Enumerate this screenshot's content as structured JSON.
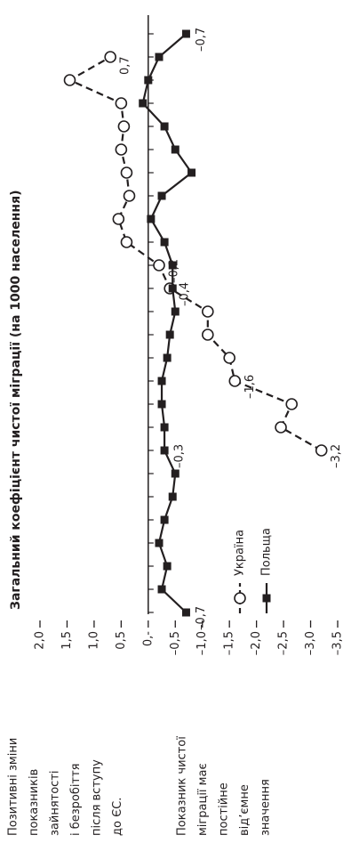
{
  "chart_data": {
    "type": "line",
    "title": "Загальний коефіцієнт чистої міграції (на 1000 населення)",
    "categories": [
      null,
      null,
      null,
      null,
      null,
      null,
      null,
      null,
      null,
      null,
      null,
      null,
      null,
      null,
      null,
      null,
      null,
      null,
      null,
      null,
      null,
      null,
      null,
      null,
      null,
      null
    ],
    "series": [
      {
        "name": "Україна",
        "color": "#231f20",
        "marker": "circle",
        "dashed": true,
        "values": [
          null,
          null,
          null,
          null,
          null,
          null,
          null,
          -3.2,
          -2.45,
          -2.65,
          -1.6,
          -1.5,
          -1.1,
          -1.1,
          -0.4,
          -0.2,
          0.4,
          0.55,
          0.35,
          0.4,
          0.5,
          0.45,
          0.5,
          1.45,
          0.7,
          null
        ],
        "value_labels": [
          null,
          null,
          null,
          null,
          null,
          null,
          null,
          "–3,2",
          null,
          null,
          "–1,6",
          null,
          null,
          null,
          "–0,4",
          "–0,2",
          null,
          null,
          null,
          null,
          null,
          null,
          null,
          null,
          "0,7",
          null
        ]
      },
      {
        "name": "Польща",
        "color": "#231f20",
        "marker": "square",
        "dashed": false,
        "values": [
          -0.7,
          -0.25,
          -0.35,
          -0.2,
          -0.3,
          -0.45,
          -0.5,
          -0.3,
          -0.3,
          -0.25,
          -0.25,
          -0.35,
          -0.4,
          -0.5,
          -0.45,
          -0.45,
          -0.3,
          -0.05,
          -0.25,
          -0.8,
          -0.5,
          -0.3,
          0.1,
          0.0,
          -0.2,
          -0.7
        ],
        "value_labels": [
          "–0,7",
          null,
          null,
          null,
          null,
          null,
          null,
          "–0,3",
          null,
          null,
          null,
          null,
          null,
          null,
          null,
          null,
          null,
          null,
          null,
          null,
          null,
          null,
          null,
          null,
          null,
          "–0,7"
        ]
      }
    ],
    "ylim": [
      -3.5,
      2.0
    ],
    "yticks": [
      {
        "value": 2.0,
        "label": "2,0"
      },
      {
        "value": 1.5,
        "label": "1,5"
      },
      {
        "value": 1.0,
        "label": "1,0"
      },
      {
        "value": 0.5,
        "label": "0,5"
      },
      {
        "value": 0,
        "label": "0,-"
      },
      {
        "value": -0.5,
        "label": "–0,5"
      },
      {
        "value": -1.0,
        "label": "–1,0"
      },
      {
        "value": -1.5,
        "label": "–1,5"
      },
      {
        "value": -2.0,
        "label": "–2,0"
      },
      {
        "value": -2.5,
        "label": "–2,5"
      },
      {
        "value": -3.0,
        "label": "–3,0"
      },
      {
        "value": -3.5,
        "label": "–3,5"
      }
    ]
  },
  "notes": [
    [
      "Позитивні зміни",
      "показників",
      "зайнятості",
      "і безробіття",
      "після вступу",
      "до ЄС."
    ],
    [
      "Показник чистої",
      "міграції має",
      "постійне",
      "від’ємне",
      "значення"
    ]
  ]
}
